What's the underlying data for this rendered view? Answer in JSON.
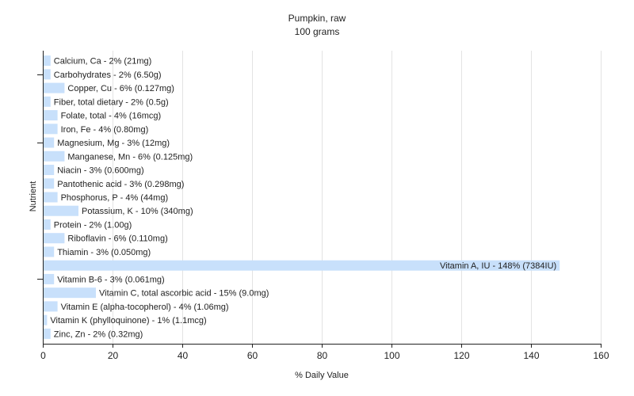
{
  "chart_data": {
    "type": "bar",
    "orientation": "horizontal",
    "title": "Pumpkin, raw",
    "subtitle": "100 grams",
    "xlabel": "% Daily Value",
    "ylabel": "Nutrient",
    "xlim": [
      0,
      160
    ],
    "xticks": [
      0,
      20,
      40,
      60,
      80,
      100,
      120,
      140,
      160
    ],
    "grid": true,
    "bar_color": "#c8e0fb",
    "categories": [
      "Calcium, Ca - 2% (21mg)",
      "Carbohydrates - 2% (6.50g)",
      "Copper, Cu - 6% (0.127mg)",
      "Fiber, total dietary - 2% (0.5g)",
      "Folate, total - 4% (16mcg)",
      "Iron, Fe - 4% (0.80mg)",
      "Magnesium, Mg - 3% (12mg)",
      "Manganese, Mn - 6% (0.125mg)",
      "Niacin - 3% (0.600mg)",
      "Pantothenic acid - 3% (0.298mg)",
      "Phosphorus, P - 4% (44mg)",
      "Potassium, K - 10% (340mg)",
      "Protein - 2% (1.00g)",
      "Riboflavin - 6% (0.110mg)",
      "Thiamin - 3% (0.050mg)",
      "Vitamin A, IU - 148% (7384IU)",
      "Vitamin B-6 - 3% (0.061mg)",
      "Vitamin C, total ascorbic acid - 15% (9.0mg)",
      "Vitamin E (alpha-tocopherol) - 4% (1.06mg)",
      "Vitamin K (phylloquinone) - 1% (1.1mcg)",
      "Zinc, Zn - 2% (0.32mg)"
    ],
    "values": [
      2,
      2,
      6,
      2,
      4,
      4,
      3,
      6,
      3,
      3,
      4,
      10,
      2,
      6,
      3,
      148,
      3,
      15,
      4,
      1,
      2
    ]
  }
}
